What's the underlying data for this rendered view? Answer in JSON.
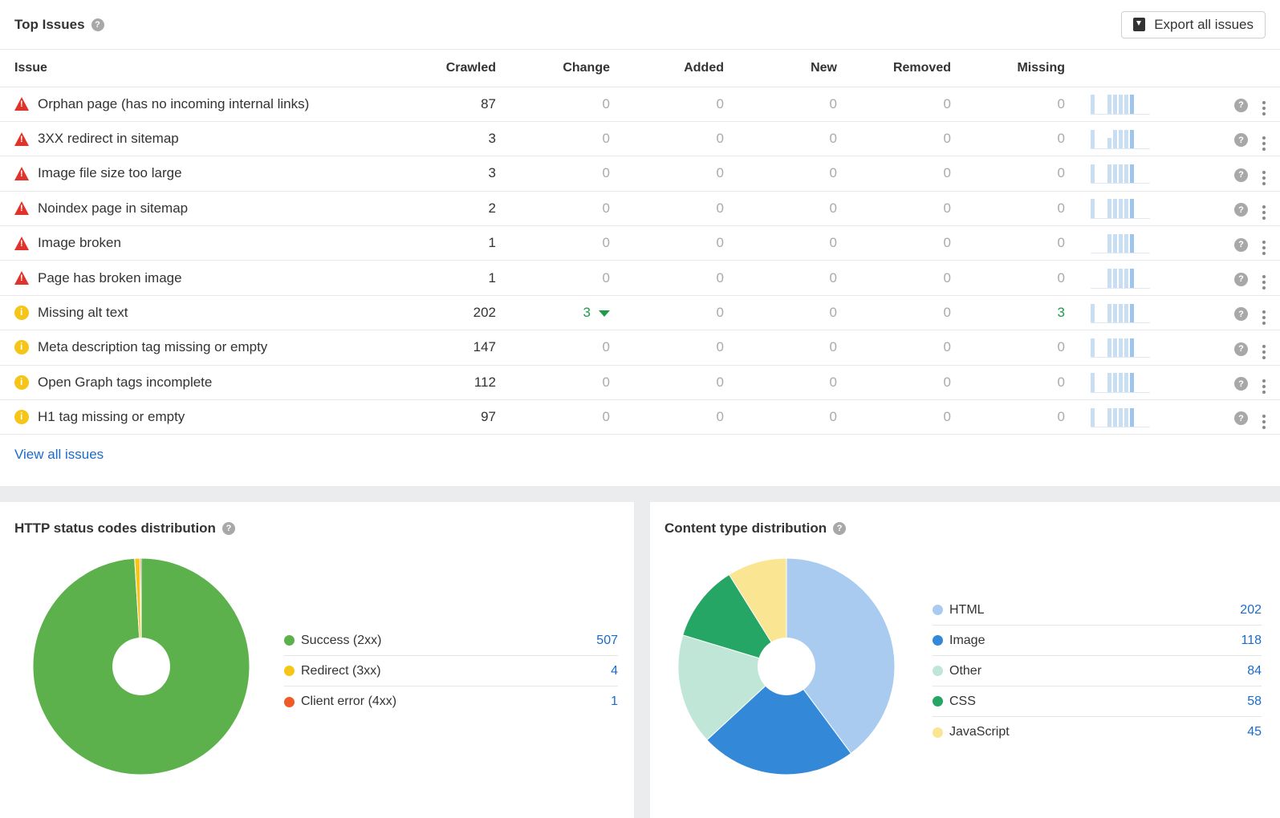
{
  "top_issues": {
    "title": "Top Issues",
    "export_label": "Export all issues",
    "columns": [
      "Issue",
      "Crawled",
      "Change",
      "Added",
      "New",
      "Removed",
      "Missing"
    ],
    "rows": [
      {
        "severity": "error",
        "issue": "Orphan page (has no incoming internal links)",
        "crawled": "87",
        "change": "0",
        "added": "0",
        "new": "0",
        "removed": "0",
        "missing": "0",
        "spark": [
          0.9,
          0,
          0,
          0.9,
          0.9,
          0.9,
          0.9,
          0.9
        ]
      },
      {
        "severity": "error",
        "issue": "3XX redirect in sitemap",
        "crawled": "3",
        "change": "0",
        "added": "0",
        "new": "0",
        "removed": "0",
        "missing": "0",
        "spark": [
          0.9,
          0,
          0,
          0.5,
          0.9,
          0.9,
          0.9,
          0.9
        ]
      },
      {
        "severity": "error",
        "issue": "Image file size too large",
        "crawled": "3",
        "change": "0",
        "added": "0",
        "new": "0",
        "removed": "0",
        "missing": "0",
        "spark": [
          0.9,
          0,
          0,
          0.9,
          0.9,
          0.9,
          0.9,
          0.9
        ]
      },
      {
        "severity": "error",
        "issue": "Noindex page in sitemap",
        "crawled": "2",
        "change": "0",
        "added": "0",
        "new": "0",
        "removed": "0",
        "missing": "0",
        "spark": [
          0.9,
          0,
          0,
          0.9,
          0.9,
          0.9,
          0.9,
          0.9
        ]
      },
      {
        "severity": "error",
        "issue": "Image broken",
        "crawled": "1",
        "change": "0",
        "added": "0",
        "new": "0",
        "removed": "0",
        "missing": "0",
        "spark": [
          0,
          0,
          0,
          0.9,
          0.9,
          0.9,
          0.9,
          0.9
        ]
      },
      {
        "severity": "error",
        "issue": "Page has broken image",
        "crawled": "1",
        "change": "0",
        "added": "0",
        "new": "0",
        "removed": "0",
        "missing": "0",
        "spark": [
          0,
          0,
          0,
          0.9,
          0.9,
          0.9,
          0.9,
          0.9
        ]
      },
      {
        "severity": "warning",
        "issue": "Missing alt text",
        "crawled": "202",
        "change": "3",
        "change_direction": "down",
        "added": "0",
        "new": "0",
        "removed": "0",
        "missing": "3",
        "spark": [
          0.9,
          0,
          0,
          0.9,
          0.9,
          0.9,
          0.9,
          0.9
        ]
      },
      {
        "severity": "warning",
        "issue": "Meta description tag missing or empty",
        "crawled": "147",
        "change": "0",
        "added": "0",
        "new": "0",
        "removed": "0",
        "missing": "0",
        "spark": [
          0.9,
          0,
          0,
          0.9,
          0.9,
          0.9,
          0.9,
          0.9
        ]
      },
      {
        "severity": "warning",
        "issue": "Open Graph tags incomplete",
        "crawled": "112",
        "change": "0",
        "added": "0",
        "new": "0",
        "removed": "0",
        "missing": "0",
        "spark": [
          0.9,
          0,
          0,
          0.9,
          0.9,
          0.9,
          0.9,
          0.9
        ]
      },
      {
        "severity": "warning",
        "issue": "H1 tag missing or empty",
        "crawled": "97",
        "change": "0",
        "added": "0",
        "new": "0",
        "removed": "0",
        "missing": "0",
        "spark": [
          0.9,
          0,
          0,
          0.9,
          0.9,
          0.9,
          0.9,
          0.9
        ]
      }
    ],
    "view_all_label": "View all issues",
    "colors": {
      "error": "#e0332b",
      "warning": "#f5c518",
      "positive": "#1e9b4a",
      "link": "#1a6bcc"
    }
  },
  "chart_data": [
    {
      "type": "pie",
      "title": "HTTP status codes distribution",
      "categories": [
        "Success (2xx)",
        "Redirect (3xx)",
        "Client error (4xx)"
      ],
      "values": [
        507,
        4,
        1
      ],
      "colors": [
        "#5cb14d",
        "#f5c518",
        "#f05a28"
      ],
      "donut": true,
      "legend": "right"
    },
    {
      "type": "pie",
      "title": "Content type distribution",
      "categories": [
        "HTML",
        "Image",
        "Other",
        "CSS",
        "JavaScript"
      ],
      "values": [
        202,
        118,
        84,
        58,
        45
      ],
      "colors": [
        "#a8cbef",
        "#3388d8",
        "#bfe6d6",
        "#25a664",
        "#fae692"
      ],
      "donut": true,
      "legend": "right"
    }
  ]
}
